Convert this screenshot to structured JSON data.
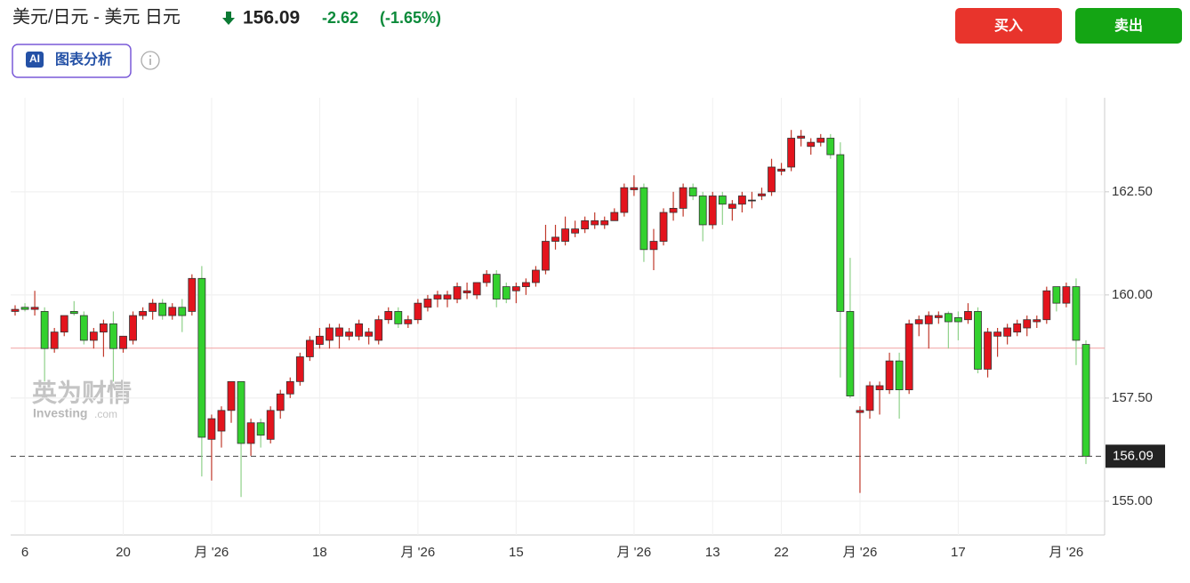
{
  "header": {
    "symbol": "美元/日元 - 美元 日元",
    "change": "-2.62",
    "change_pct": "(-1.65%)"
  },
  "buttons": {
    "buy": "买入",
    "sell": "卖出",
    "ai_badge": "AI",
    "ai": "图表分析"
  },
  "watermark": {
    "cn": "英为财情",
    "en": "Investing",
    "en_suffix": ".com"
  },
  "chart_data": {
    "type": "candlestick",
    "categories": [
      null,
      "6",
      null,
      null,
      null,
      null,
      null,
      null,
      null,
      null,
      null,
      "20",
      null,
      null,
      null,
      null,
      null,
      null,
      null,
      null,
      "月 '26",
      null,
      null,
      null,
      null,
      null,
      null,
      null,
      null,
      null,
      null,
      "18",
      null,
      null,
      null,
      null,
      null,
      null,
      null,
      null,
      null,
      "月 '26",
      null,
      null,
      null,
      null,
      null,
      null,
      null,
      null,
      null,
      "15",
      null,
      null,
      null,
      null,
      null,
      null,
      null,
      null,
      null,
      null,
      null,
      "月 '26",
      null,
      null,
      null,
      null,
      null,
      null,
      null,
      "13",
      null,
      null,
      null,
      null,
      null,
      null,
      "22",
      null,
      null,
      null,
      null,
      null,
      null,
      null,
      "月 '26",
      null,
      null,
      null,
      null,
      null,
      null,
      null,
      null,
      null,
      "17",
      null,
      null,
      null,
      null,
      null,
      null,
      null,
      null,
      null,
      null,
      "月 '26",
      null,
      null
    ],
    "open": [
      159.6,
      159.7,
      159.65,
      159.6,
      158.7,
      159.1,
      159.6,
      159.5,
      158.9,
      159.1,
      159.3,
      158.7,
      158.9,
      159.5,
      159.6,
      159.8,
      159.5,
      159.7,
      159.6,
      160.4,
      156.5,
      156.7,
      157.2,
      157.9,
      156.4,
      156.9,
      156.5,
      157.2,
      157.6,
      157.9,
      158.5,
      158.8,
      158.9,
      159.0,
      159.0,
      159.0,
      159.0,
      158.9,
      159.4,
      159.6,
      159.3,
      159.4,
      159.7,
      159.9,
      159.9,
      159.9,
      160.05,
      160.0,
      160.3,
      160.5,
      160.2,
      160.1,
      160.2,
      160.3,
      160.6,
      161.3,
      161.3,
      161.5,
      161.6,
      161.7,
      161.7,
      161.8,
      162.0,
      162.55,
      162.6,
      161.1,
      161.3,
      162.0,
      162.1,
      162.6,
      162.4,
      161.7,
      162.4,
      162.1,
      162.2,
      162.3,
      162.4,
      162.5,
      163.0,
      163.1,
      163.8,
      163.6,
      163.7,
      163.8,
      163.4,
      159.6,
      157.15,
      157.2,
      157.7,
      157.7,
      158.4,
      157.7,
      159.3,
      159.3,
      159.45,
      159.55,
      159.45,
      159.4,
      159.6,
      158.2,
      159.0,
      159.0,
      159.1,
      159.2,
      159.35,
      159.4,
      160.2,
      159.8,
      160.2,
      158.8
    ],
    "high": [
      159.75,
      159.8,
      160.1,
      159.7,
      159.2,
      159.5,
      159.85,
      159.6,
      159.2,
      159.4,
      159.6,
      159.0,
      159.6,
      159.7,
      159.9,
      159.9,
      159.8,
      159.9,
      160.5,
      160.7,
      157.1,
      157.3,
      157.9,
      157.9,
      157.0,
      157.0,
      157.3,
      157.7,
      158.0,
      158.6,
      159.0,
      159.2,
      159.3,
      159.3,
      159.2,
      159.4,
      159.2,
      159.5,
      159.7,
      159.7,
      159.5,
      159.9,
      160.0,
      160.1,
      160.1,
      160.3,
      160.3,
      160.3,
      160.6,
      160.6,
      160.3,
      160.3,
      160.4,
      160.7,
      161.7,
      161.7,
      161.9,
      161.8,
      161.9,
      162.0,
      161.9,
      162.1,
      162.7,
      162.9,
      162.7,
      161.6,
      162.1,
      162.5,
      162.7,
      162.7,
      162.5,
      162.5,
      162.5,
      162.3,
      162.5,
      162.5,
      162.6,
      163.3,
      163.2,
      164.0,
      164.0,
      163.8,
      163.9,
      163.9,
      163.7,
      160.9,
      157.3,
      157.9,
      157.9,
      158.6,
      158.6,
      159.4,
      159.5,
      159.6,
      159.6,
      159.6,
      159.6,
      159.8,
      159.7,
      159.2,
      159.2,
      159.3,
      159.4,
      159.5,
      159.5,
      160.2,
      160.2,
      160.3,
      160.4,
      158.9
    ],
    "low": [
      159.5,
      159.6,
      159.5,
      157.9,
      158.6,
      159.0,
      159.5,
      158.8,
      158.7,
      158.5,
      157.9,
      158.6,
      158.8,
      159.4,
      159.4,
      159.4,
      159.4,
      159.1,
      159.5,
      155.6,
      155.5,
      156.3,
      156.9,
      155.1,
      156.1,
      156.3,
      156.4,
      157.0,
      157.5,
      157.8,
      158.4,
      158.7,
      158.7,
      158.7,
      158.9,
      158.9,
      158.8,
      158.8,
      159.3,
      159.2,
      159.2,
      159.3,
      159.6,
      159.7,
      159.7,
      159.8,
      159.9,
      159.9,
      160.2,
      159.7,
      159.8,
      159.8,
      160.0,
      160.2,
      160.5,
      161.1,
      161.2,
      161.4,
      161.5,
      161.6,
      161.6,
      161.8,
      161.9,
      162.4,
      160.8,
      160.6,
      161.2,
      161.8,
      161.9,
      162.3,
      161.3,
      161.6,
      161.7,
      161.8,
      162.0,
      162.1,
      162.3,
      162.4,
      162.9,
      163.0,
      163.6,
      163.4,
      163.6,
      163.3,
      158.0,
      157.5,
      155.2,
      157.0,
      157.1,
      157.6,
      157.0,
      157.6,
      159.0,
      158.7,
      159.3,
      158.7,
      158.9,
      159.3,
      158.1,
      158.0,
      158.5,
      158.8,
      159.0,
      159.0,
      159.2,
      159.3,
      159.6,
      159.7,
      158.3,
      155.9
    ],
    "close": [
      159.65,
      159.65,
      159.7,
      158.7,
      159.1,
      159.5,
      159.55,
      158.9,
      159.1,
      159.3,
      158.7,
      159.0,
      159.5,
      159.6,
      159.8,
      159.5,
      159.7,
      159.5,
      160.4,
      156.55,
      157.0,
      157.2,
      157.9,
      156.4,
      156.9,
      156.6,
      157.2,
      157.6,
      157.9,
      158.5,
      158.9,
      159.0,
      159.2,
      159.2,
      159.1,
      159.3,
      159.1,
      159.4,
      159.6,
      159.3,
      159.4,
      159.8,
      159.9,
      160.0,
      160.0,
      160.2,
      160.1,
      160.3,
      160.5,
      159.9,
      159.9,
      160.2,
      160.3,
      160.6,
      161.3,
      161.4,
      161.6,
      161.6,
      161.8,
      161.8,
      161.8,
      162.0,
      162.6,
      162.6,
      161.1,
      161.3,
      162.0,
      162.1,
      162.6,
      162.4,
      161.7,
      162.4,
      162.2,
      162.2,
      162.4,
      162.3,
      162.45,
      163.1,
      163.05,
      163.8,
      163.85,
      163.7,
      163.8,
      163.4,
      159.6,
      157.55,
      157.2,
      157.8,
      157.8,
      158.4,
      157.7,
      159.3,
      159.4,
      159.5,
      159.5,
      159.35,
      159.35,
      159.6,
      158.2,
      159.1,
      159.1,
      159.2,
      159.3,
      159.4,
      159.4,
      160.1,
      159.8,
      160.2,
      158.9,
      156.09
    ],
    "up_color": "#e3141d",
    "down_color": "#33d12e",
    "previous_close": 158.71,
    "current_price": 156.09,
    "ylim": [
      154.18,
      164.78
    ],
    "yticks": [
      {
        "value": 155,
        "label": "155.00"
      },
      {
        "value": 157.5,
        "label": "157.50"
      },
      {
        "value": 160,
        "label": "160.00"
      },
      {
        "value": 162.5,
        "label": "162.50"
      }
    ],
    "grid": true
  }
}
